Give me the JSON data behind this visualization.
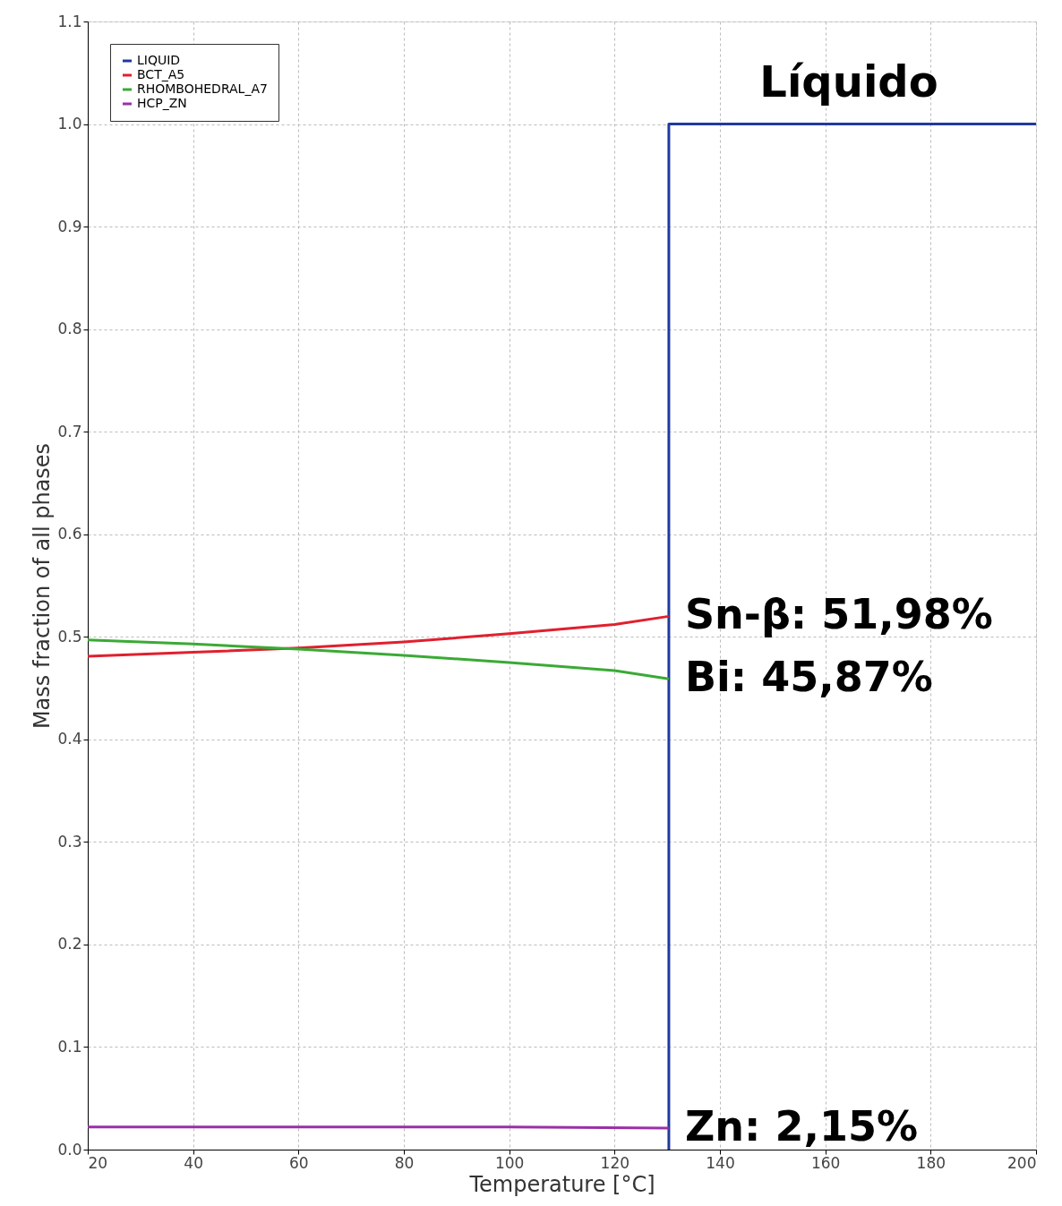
{
  "chart_data": {
    "type": "line",
    "xlabel": "Temperature [°C]",
    "ylabel": "Mass fraction of all phases",
    "xlim": [
      20,
      200
    ],
    "xticks": [
      20,
      40,
      60,
      80,
      100,
      120,
      140,
      160,
      180,
      200
    ],
    "ylim": [
      0,
      1.1
    ],
    "yticks": [
      {
        "value": 0,
        "label": "0.0"
      },
      0.1,
      0.2,
      0.3,
      0.4,
      0.5,
      0.6,
      0.7,
      0.8,
      0.9,
      {
        "value": 1,
        "label": "1.0"
      },
      1.1
    ],
    "grid": true,
    "legend": "top left",
    "line_style": "solid",
    "marker": "none",
    "series": [
      {
        "name": "LIQUID",
        "color": "#1f3a9e",
        "x": [
          130.3,
          130.3,
          200
        ],
        "values": [
          0,
          1,
          1
        ]
      },
      {
        "name": "BCT_A5",
        "color": "#e0202e",
        "x": [
          20,
          40,
          60,
          80,
          100,
          120,
          130.3
        ],
        "values": [
          0.481,
          0.485,
          0.489,
          0.495,
          0.503,
          0.512,
          0.52
        ]
      },
      {
        "name": "RHOMBOHEDRAL_A7",
        "color": "#3aaa35",
        "x": [
          20,
          40,
          60,
          80,
          100,
          120,
          130.3
        ],
        "values": [
          0.497,
          0.493,
          0.488,
          0.482,
          0.475,
          0.467,
          0.459
        ]
      },
      {
        "name": "HCP_ZN",
        "color": "#9b30a8",
        "x": [
          20,
          60,
          100,
          130.3
        ],
        "values": [
          0.022,
          0.022,
          0.022,
          0.021
        ]
      }
    ],
    "annotations": [
      "Líquido",
      "Sn-β: 51,98%",
      "Bi: 45,87%",
      "Zn: 2,15%"
    ]
  }
}
